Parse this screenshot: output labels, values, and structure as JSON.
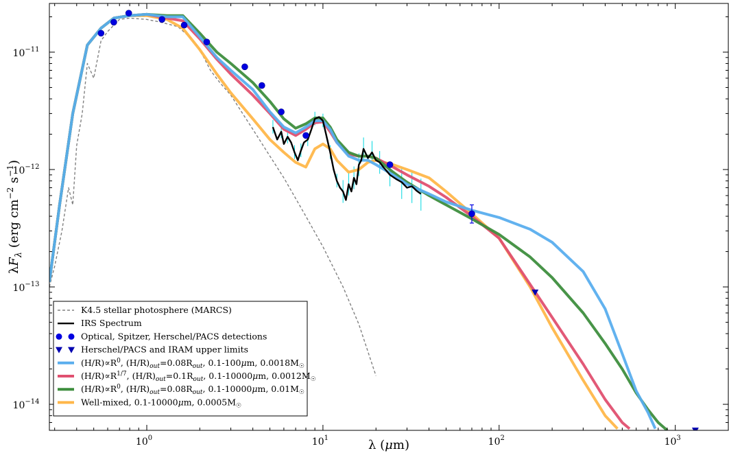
{
  "chart_data": {
    "type": "line",
    "xlabel": "λ (μm)",
    "ylabel": "λF_λ (erg cm⁻² s⁻¹)",
    "xscale": "log",
    "yscale": "log",
    "xlim": [
      0.28,
      2000
    ],
    "ylim": [
      6e-15,
      2.6e-11
    ],
    "grid": false,
    "legend_position": "lower-left",
    "x_ticks": [
      1,
      10,
      100,
      1000
    ],
    "x_tick_labels": [
      [
        "10",
        "0"
      ],
      [
        "10",
        "1"
      ],
      [
        "10",
        "2"
      ],
      [
        "10",
        "3"
      ]
    ],
    "y_ticks": [
      1e-14,
      1e-13,
      1e-12,
      1e-11
    ],
    "y_tick_labels": [
      [
        "10",
        "−14"
      ],
      [
        "10",
        "−13"
      ],
      [
        "10",
        "−12"
      ],
      [
        "10",
        "−11"
      ]
    ],
    "colors": {
      "photosphere": "#808080",
      "irs": "#000000",
      "irs_errors": "#00d8e0",
      "detections": "#0000e0",
      "upper_limits": "#0000b0",
      "model_a": "#5aaeee",
      "model_b": "#e05070",
      "model_c": "#3e8e3e",
      "model_d": "#ffb74a"
    },
    "series": [
      {
        "key": "photosphere",
        "name": "K4.5 stellar photosphere (MARCS)",
        "style": "dashed",
        "x": [
          0.28,
          0.3,
          0.33,
          0.36,
          0.38,
          0.4,
          0.43,
          0.46,
          0.5,
          0.55,
          0.6,
          0.7,
          0.8,
          1.0,
          1.2,
          1.5,
          1.8,
          2.0,
          2.3,
          2.6,
          3.0,
          3.5,
          4.0,
          5.0,
          6.0,
          8.0,
          10.0,
          13.0,
          16.0,
          20.0
        ],
        "y": [
          1e-13,
          1.5e-13,
          3e-13,
          7e-13,
          5e-13,
          1.6e-12,
          3e-12,
          8e-12,
          6e-12,
          1.25e-11,
          1.5e-11,
          1.9e-11,
          1.95e-11,
          1.9e-11,
          1.8e-11,
          1.65e-11,
          1.3e-11,
          1.05e-11,
          7e-12,
          5.5e-12,
          4.3e-12,
          3e-12,
          2.2e-12,
          1.3e-12,
          8.5e-13,
          4e-13,
          2.2e-13,
          1e-13,
          4.8e-14,
          1.75e-14
        ]
      },
      {
        "key": "irs",
        "name": "IRS Spectrum",
        "style": "solid",
        "x": [
          5.2,
          5.5,
          5.8,
          6.0,
          6.3,
          6.6,
          6.9,
          7.2,
          7.5,
          7.8,
          8.2,
          8.6,
          9.0,
          9.5,
          10.0,
          10.5,
          11.0,
          11.5,
          12.0,
          12.5,
          13.0,
          13.5,
          14.0,
          14.5,
          15.0,
          15.5,
          16.0,
          16.5,
          17.0,
          18.0,
          19.0,
          20.0,
          21.0,
          22.0,
          24.0,
          26.0,
          28.0,
          30.0,
          32.0,
          34.0,
          36.0
        ],
        "y": [
          2.3e-12,
          1.8e-12,
          2.1e-12,
          1.65e-12,
          1.9e-12,
          1.7e-12,
          1.4e-12,
          1.2e-12,
          1.45e-12,
          1.7e-12,
          1.8e-12,
          2.2e-12,
          2.7e-12,
          2.8e-12,
          2.6e-12,
          1.9e-12,
          1.4e-12,
          1e-12,
          8e-13,
          7e-13,
          6.5e-13,
          5.5e-13,
          7.5e-13,
          6.5e-13,
          8.5e-13,
          7.5e-13,
          1.1e-12,
          1.2e-12,
          1.5e-12,
          1.25e-12,
          1.4e-12,
          1.2e-12,
          1.15e-12,
          1.05e-12,
          9e-13,
          8.3e-13,
          7.8e-13,
          7e-13,
          7.2e-13,
          6.6e-13,
          6.2e-13
        ]
      },
      {
        "key": "model_a",
        "name": "(H/R)∝R⁰, (H/R)_out=0.08R_out, 0.1-100μm, 0.0018M☉",
        "style": "solid",
        "x": [
          0.28,
          0.32,
          0.38,
          0.46,
          0.55,
          0.65,
          0.8,
          1.0,
          1.3,
          1.6,
          2.0,
          2.5,
          3.0,
          4.0,
          5.0,
          6.0,
          7.0,
          8.0,
          9.0,
          10.0,
          11.0,
          12.0,
          14.0,
          16.0,
          18.0,
          20.0,
          25.0,
          30.0,
          40.0,
          50.0,
          70.0,
          100.0,
          150.0,
          200.0,
          300.0,
          400.0,
          500.0,
          600.0,
          700.0,
          770.0
        ],
        "y": [
          1.1e-13,
          5e-13,
          3e-12,
          1.15e-11,
          1.6e-11,
          1.95e-11,
          2.05e-11,
          2.1e-11,
          2e-11,
          2e-11,
          1.35e-11,
          9e-12,
          7e-12,
          4.8e-12,
          3.1e-12,
          2.3e-12,
          2.05e-12,
          2.3e-12,
          2.6e-12,
          2.6e-12,
          2.2e-12,
          1.7e-12,
          1.3e-12,
          1.2e-12,
          1.2e-12,
          1.1e-12,
          9e-13,
          7.5e-13,
          6.2e-13,
          5.3e-13,
          4.5e-13,
          3.9e-13,
          3.1e-13,
          2.4e-13,
          1.35e-13,
          6.5e-14,
          2.7e-14,
          1.3e-14,
          8.5e-15,
          6.2e-15
        ]
      },
      {
        "key": "model_b",
        "name": "(H/R)∝R^(1/7), (H/R)_out=0.1R_out, 0.1-10000μm, 0.0012M☉",
        "style": "solid",
        "x": [
          0.28,
          0.32,
          0.38,
          0.46,
          0.55,
          0.65,
          0.8,
          1.0,
          1.3,
          1.6,
          2.0,
          2.5,
          3.0,
          4.0,
          5.0,
          6.0,
          7.0,
          8.0,
          9.0,
          10.0,
          11.0,
          12.0,
          14.0,
          16.0,
          18.0,
          20.0,
          25.0,
          30.0,
          40.0,
          50.0,
          70.0,
          100.0,
          150.0,
          200.0,
          300.0,
          400.0,
          500.0,
          550.0
        ],
        "y": [
          1.1e-13,
          5e-13,
          3e-12,
          1.15e-11,
          1.6e-11,
          1.95e-11,
          2.05e-11,
          2.1e-11,
          1.95e-11,
          1.85e-11,
          1.3e-11,
          8.7e-12,
          6.5e-12,
          4.3e-12,
          3e-12,
          2.2e-12,
          1.95e-12,
          2.2e-12,
          2.5e-12,
          2.55e-12,
          2.1e-12,
          1.7e-12,
          1.35e-12,
          1.3e-12,
          1.3e-12,
          1.25e-12,
          1.05e-12,
          9e-13,
          7.2e-13,
          5.8e-13,
          4e-13,
          2.6e-13,
          1.05e-13,
          5.5e-14,
          2.2e-14,
          1.1e-14,
          7e-15,
          6.2e-15
        ]
      },
      {
        "key": "model_c",
        "name": "(H/R)∝R⁰, (H/R)_out=0.08R_out, 0.1-10000μm, 0.01M☉",
        "style": "solid",
        "x": [
          0.28,
          0.32,
          0.38,
          0.46,
          0.55,
          0.65,
          0.8,
          1.0,
          1.3,
          1.6,
          2.0,
          2.5,
          3.0,
          4.0,
          5.0,
          6.0,
          7.0,
          8.0,
          9.0,
          10.0,
          11.0,
          12.0,
          14.0,
          16.0,
          18.0,
          20.0,
          25.0,
          30.0,
          40.0,
          50.0,
          70.0,
          100.0,
          150.0,
          200.0,
          300.0,
          400.0,
          500.0,
          600.0,
          700.0,
          800.0,
          900.0
        ],
        "y": [
          1.1e-13,
          5e-13,
          3e-12,
          1.15e-11,
          1.6e-11,
          1.95e-11,
          2.05e-11,
          2.1e-11,
          2.05e-11,
          2.05e-11,
          1.45e-11,
          1e-11,
          8e-12,
          5.5e-12,
          3.8e-12,
          2.7e-12,
          2.25e-12,
          2.45e-12,
          2.75e-12,
          2.75e-12,
          2.3e-12,
          1.8e-12,
          1.4e-12,
          1.3e-12,
          1.3e-12,
          1.25e-12,
          9.5e-13,
          7.8e-13,
          6e-13,
          5e-13,
          3.8e-13,
          2.8e-13,
          1.8e-13,
          1.2e-13,
          6e-14,
          3.3e-14,
          2e-14,
          1.25e-14,
          9e-15,
          7e-15,
          6e-15
        ]
      },
      {
        "key": "model_d",
        "name": "Well-mixed, 0.1-10000μm, 0.0005M☉",
        "style": "solid",
        "x": [
          0.28,
          0.32,
          0.38,
          0.46,
          0.55,
          0.65,
          0.8,
          1.0,
          1.3,
          1.6,
          2.0,
          2.5,
          3.0,
          4.0,
          5.0,
          6.0,
          7.0,
          8.0,
          9.0,
          10.0,
          11.0,
          12.0,
          14.0,
          16.0,
          18.0,
          20.0,
          25.0,
          30.0,
          40.0,
          50.0,
          70.0,
          100.0,
          150.0,
          200.0,
          300.0,
          400.0,
          470.0
        ],
        "y": [
          1.1e-13,
          5e-13,
          3e-12,
          1.15e-11,
          1.6e-11,
          1.95e-11,
          2.05e-11,
          2.05e-11,
          1.9e-11,
          1.6e-11,
          1.05e-11,
          6.5e-12,
          4.5e-12,
          2.7e-12,
          1.8e-12,
          1.4e-12,
          1.15e-12,
          1.05e-12,
          1.5e-12,
          1.65e-12,
          1.5e-12,
          1.2e-12,
          9.5e-13,
          1e-12,
          1.15e-12,
          1.2e-12,
          1.1e-12,
          1e-12,
          8.5e-13,
          6.5e-13,
          4.2e-13,
          2.6e-13,
          1e-13,
          4.5e-14,
          1.6e-14,
          8e-15,
          6.2e-15
        ]
      }
    ],
    "detections": {
      "name": "Optical, Spitzer, Herschel/PACS detections",
      "points": [
        {
          "x": 0.55,
          "y": 1.45e-11
        },
        {
          "x": 0.65,
          "y": 1.8e-11
        },
        {
          "x": 0.79,
          "y": 2.15e-11
        },
        {
          "x": 1.22,
          "y": 1.9e-11
        },
        {
          "x": 1.63,
          "y": 1.7e-11
        },
        {
          "x": 2.19,
          "y": 1.22e-11
        },
        {
          "x": 3.6,
          "y": 7.5e-12
        },
        {
          "x": 4.5,
          "y": 5.2e-12
        },
        {
          "x": 5.8,
          "y": 3.1e-12
        },
        {
          "x": 8.0,
          "y": 1.95e-12
        },
        {
          "x": 24.0,
          "y": 1.1e-12
        },
        {
          "x": 70.0,
          "y": 4.2e-13,
          "err_lo": 3.5e-13,
          "err_hi": 5e-13
        }
      ]
    },
    "upper_limits": {
      "name": "Herschel/PACS and IRAM upper limits",
      "points": [
        {
          "x": 160.0,
          "y": 9e-14
        },
        {
          "x": 1300.0,
          "y": 6e-15
        }
      ]
    },
    "legend": [
      {
        "key": "photosphere",
        "kind": "dashed",
        "parts": [
          {
            "t": "K4.5 stellar photosphere (MARCS)"
          }
        ]
      },
      {
        "key": "irs",
        "kind": "line",
        "parts": [
          {
            "t": "IRS Spectrum"
          }
        ]
      },
      {
        "key": "detections",
        "kind": "dots",
        "parts": [
          {
            "t": "Optical, Spitzer, Herschel/PACS detections"
          }
        ]
      },
      {
        "key": "upper_limits",
        "kind": "triangles",
        "parts": [
          {
            "t": "Herschel/PACS and IRAM upper limits"
          }
        ]
      },
      {
        "key": "model_a",
        "kind": "line",
        "parts": [
          {
            "t": "(H/R)∝R"
          },
          {
            "t": "0",
            "s": "sup"
          },
          {
            "t": ", (H/R)"
          },
          {
            "t": "out",
            "s": "sub-i"
          },
          {
            "t": "=0.08R"
          },
          {
            "t": "out",
            "s": "sub-i"
          },
          {
            "t": ", 0.1-100"
          },
          {
            "t": "μ",
            "s": "i"
          },
          {
            "t": "m, 0.0018M"
          },
          {
            "t": "☉",
            "s": "sub"
          }
        ]
      },
      {
        "key": "model_b",
        "kind": "line",
        "parts": [
          {
            "t": "(H/R)∝R"
          },
          {
            "t": "1/7",
            "s": "sup"
          },
          {
            "t": ", (H/R)"
          },
          {
            "t": "out",
            "s": "sub-i"
          },
          {
            "t": "=0.1R"
          },
          {
            "t": "out",
            "s": "sub-i"
          },
          {
            "t": ", 0.1-10000"
          },
          {
            "t": "μ",
            "s": "i"
          },
          {
            "t": "m, 0.0012M"
          },
          {
            "t": "☉",
            "s": "sub"
          }
        ]
      },
      {
        "key": "model_c",
        "kind": "line",
        "parts": [
          {
            "t": "(H/R)∝R"
          },
          {
            "t": "0",
            "s": "sup"
          },
          {
            "t": ", (H/R)"
          },
          {
            "t": "out",
            "s": "sub-i"
          },
          {
            "t": "=0.08R"
          },
          {
            "t": "out",
            "s": "sub-i"
          },
          {
            "t": ", 0.1-10000"
          },
          {
            "t": "μ",
            "s": "i"
          },
          {
            "t": "m, 0.01M"
          },
          {
            "t": "☉",
            "s": "sub"
          }
        ]
      },
      {
        "key": "model_d",
        "kind": "line",
        "parts": [
          {
            "t": "Well-mixed, 0.1-10000"
          },
          {
            "t": "μ",
            "s": "i"
          },
          {
            "t": "m, 0.0005M"
          },
          {
            "t": "☉",
            "s": "sub"
          }
        ]
      }
    ]
  }
}
